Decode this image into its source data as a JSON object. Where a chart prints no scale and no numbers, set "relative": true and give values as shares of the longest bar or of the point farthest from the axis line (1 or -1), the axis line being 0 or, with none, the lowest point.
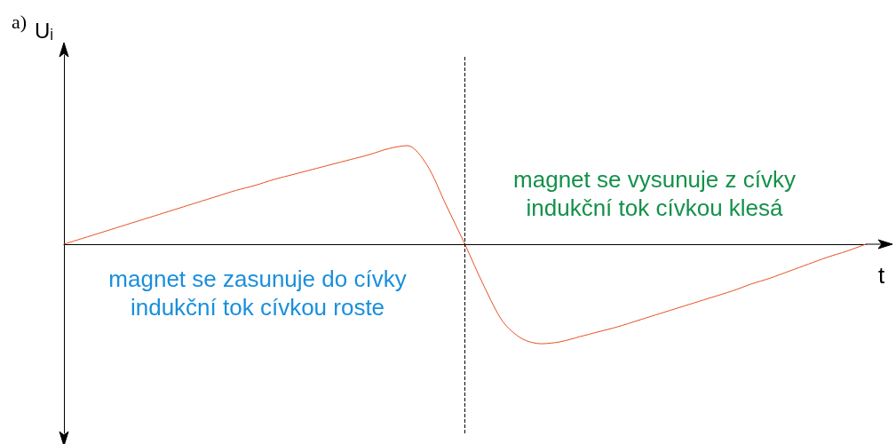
{
  "chart_data": {
    "type": "line",
    "title": "a)",
    "ylabel": "Uᵢ",
    "xlabel": "t",
    "relative": true,
    "grid": false,
    "marker": "none",
    "line_style": "solid",
    "categories": [
      null,
      null,
      null,
      null,
      null,
      null,
      null,
      null,
      null,
      null,
      null,
      null,
      null,
      null,
      null,
      null,
      null,
      null,
      null,
      null,
      null,
      null,
      null,
      null,
      null,
      null,
      null,
      null,
      null,
      null,
      null,
      null,
      null,
      null,
      null,
      null,
      null,
      null,
      null,
      null,
      null,
      null,
      null
    ],
    "series": [
      {
        "color": "#e8501f",
        "values": [
          0,
          0.06,
          0.12,
          0.18,
          0.24,
          0.3,
          0.36,
          0.42,
          0.48,
          0.54,
          0.59,
          0.65,
          0.7,
          0.75,
          0.8,
          0.85,
          0.9,
          0.96,
          0.99,
          0.8,
          0.4,
          0,
          -0.42,
          -0.78,
          -0.95,
          -1,
          -0.98,
          -0.93,
          -0.88,
          -0.83,
          -0.77,
          -0.71,
          -0.65,
          -0.59,
          -0.53,
          -0.47,
          -0.4,
          -0.34,
          -0.27,
          -0.2,
          -0.13,
          -0.07,
          0
        ]
      }
    ],
    "annotations": [
      "magnet se zasunuje do cívky\nindukční tok cívkou roste",
      "magnet se vysunuje z cívky\nindukční tok cívkou klesá"
    ]
  }
}
